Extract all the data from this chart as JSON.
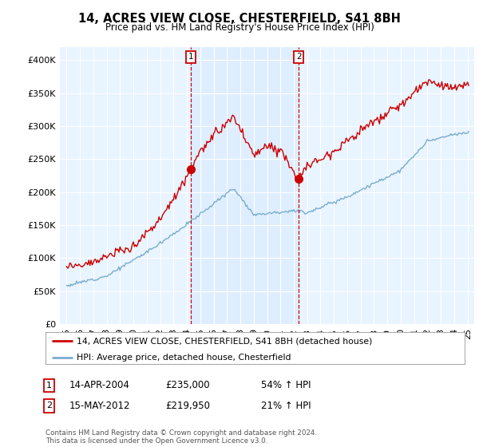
{
  "title": "14, ACRES VIEW CLOSE, CHESTERFIELD, S41 8BH",
  "subtitle": "Price paid vs. HM Land Registry's House Price Index (HPI)",
  "legend_line1": "14, ACRES VIEW CLOSE, CHESTERFIELD, S41 8BH (detached house)",
  "legend_line2": "HPI: Average price, detached house, Chesterfield",
  "sale1_date": "14-APR-2004",
  "sale1_price": "£235,000",
  "sale1_pct": "54% ↑ HPI",
  "sale1_year": 2004.29,
  "sale1_value": 235000,
  "sale2_date": "15-MAY-2012",
  "sale2_price": "£219,950",
  "sale2_pct": "21% ↑ HPI",
  "sale2_year": 2012.37,
  "sale2_value": 219950,
  "footer": "Contains HM Land Registry data © Crown copyright and database right 2024.\nThis data is licensed under the Open Government Licence v3.0.",
  "red_color": "#cc0000",
  "blue_color": "#7aadcf",
  "shade_color": "#ddeeff",
  "bg_color": "#e8f4ff",
  "plot_bg": "#ffffff",
  "grid_color": "#ffffff",
  "ylim": [
    0,
    420000
  ],
  "xlim_start": 1994.5,
  "xlim_end": 2025.5
}
